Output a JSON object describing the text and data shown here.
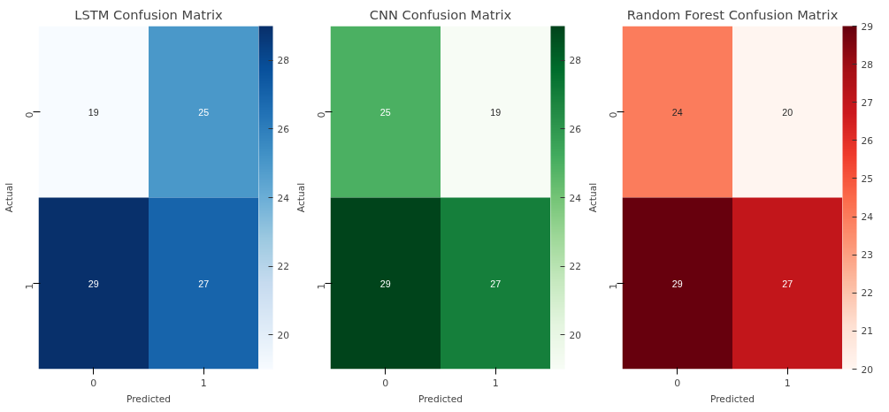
{
  "chart_data": [
    {
      "type": "heatmap",
      "title": "LSTM Confusion Matrix",
      "xlabel": "Predicted",
      "ylabel": "Actual",
      "categories": [
        "0",
        "1"
      ],
      "y_categories": [
        "0",
        "1"
      ],
      "cells": [
        [
          19,
          25
        ],
        [
          29,
          27
        ]
      ],
      "clim": [
        19,
        29
      ],
      "cticks": [
        20,
        22,
        24,
        26,
        28
      ],
      "data_labels": true
    },
    {
      "type": "heatmap",
      "title": "CNN Confusion Matrix",
      "xlabel": "Predicted",
      "ylabel": "Actual",
      "categories": [
        "0",
        "1"
      ],
      "y_categories": [
        "0",
        "1"
      ],
      "cells": [
        [
          25,
          19
        ],
        [
          29,
          27
        ]
      ],
      "clim": [
        19,
        29
      ],
      "cticks": [
        20,
        22,
        24,
        26,
        28
      ],
      "data_labels": true
    },
    {
      "type": "heatmap",
      "title": "Random Forest Confusion Matrix",
      "xlabel": "Predicted",
      "ylabel": "Actual",
      "categories": [
        "0",
        "1"
      ],
      "y_categories": [
        "0",
        "1"
      ],
      "cells": [
        [
          24,
          20
        ],
        [
          29,
          27
        ]
      ],
      "clim": [
        20,
        29
      ],
      "cticks": [
        20,
        21,
        22,
        23,
        24,
        25,
        26,
        27,
        28,
        29
      ],
      "data_labels": true
    }
  ]
}
